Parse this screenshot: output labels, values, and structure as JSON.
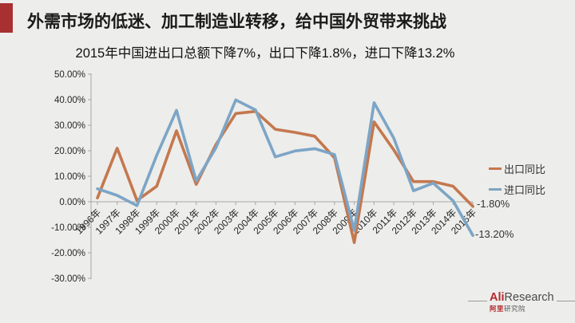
{
  "page": {
    "background_color": "#EDEDEB",
    "accent_bar_color": "#A93030"
  },
  "header": {
    "title": "外需市场的低迷、加工制造业转移，给中国外贸带来挑战",
    "subtitle": "2015年中国进出口总额下降7%，出口下降1.8%，进口下降13.2%"
  },
  "chart_data": {
    "type": "line",
    "categories": [
      "1996年",
      "1997年",
      "1998年",
      "1999年",
      "2000年",
      "2001年",
      "2002年",
      "2003年",
      "2004年",
      "2005年",
      "2006年",
      "2007年",
      "2008年",
      "2009年",
      "2010年",
      "2011年",
      "2012年",
      "2013年",
      "2014年",
      "2015年"
    ],
    "series": [
      {
        "name": "出口同比",
        "color": "#C4784E",
        "values": [
          1.5,
          21.0,
          0.5,
          6.1,
          27.8,
          6.8,
          22.4,
          34.6,
          35.4,
          28.4,
          27.2,
          25.7,
          17.2,
          -16.0,
          31.3,
          20.3,
          7.9,
          7.9,
          6.1,
          -1.8
        ]
      },
      {
        "name": "进口同比",
        "color": "#7CA5C6",
        "values": [
          5.1,
          2.5,
          -1.5,
          18.2,
          35.8,
          8.2,
          21.2,
          39.9,
          36.0,
          17.6,
          19.9,
          20.8,
          18.5,
          -11.2,
          38.8,
          24.9,
          4.3,
          7.3,
          0.4,
          -13.2
        ]
      }
    ],
    "title": "",
    "xlabel": "",
    "ylabel": "",
    "ylim": [
      -30,
      50
    ],
    "y_tick_labels": [
      "50.00%",
      "40.00%",
      "30.00%",
      "20.00%",
      "10.00%",
      "0.00%",
      "-10.00%",
      "-20.00%",
      "-30.00%"
    ],
    "grid": false,
    "legend_position": "right",
    "axis_color": "#a6a6a4",
    "tick_text_color": "#262626",
    "annotations": [
      {
        "text": "-1.80%",
        "series": "出口同比"
      },
      {
        "text": "-13.20%",
        "series": "进口同比"
      }
    ]
  },
  "footer_logo": {
    "ali": "Ali",
    "research": "Research",
    "cn_red": "阿里",
    "cn_gray": "研究院",
    "ali_color": "#B3282D"
  }
}
